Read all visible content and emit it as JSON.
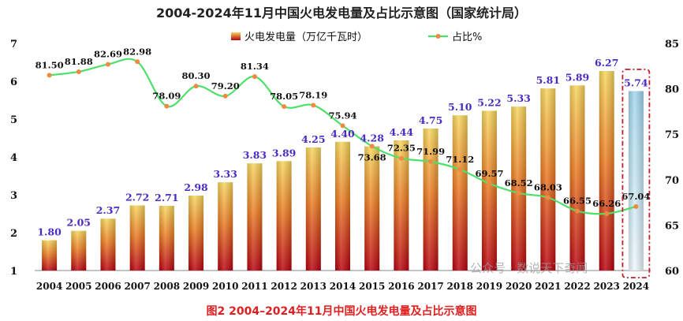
{
  "chart_data": {
    "type": "bar+line",
    "title": "2004-2024年11月中国火电发电量及占比示意图（国家统计局）",
    "caption": "图2 2004–2024年11月中国火电发电量及占比示意图",
    "watermark": "公众号 · 数说天下奇闻",
    "categories": [
      "2004",
      "2005",
      "2006",
      "2007",
      "2008",
      "2009",
      "2010",
      "2011",
      "2012",
      "2013",
      "2014",
      "2015",
      "2016",
      "2017",
      "2018",
      "2019",
      "2020",
      "2021",
      "2022",
      "2023",
      "2024"
    ],
    "series": [
      {
        "name": "火电发电量（万亿千瓦时）",
        "type": "bar",
        "axis": "left",
        "values": [
          1.8,
          2.05,
          2.37,
          2.72,
          2.71,
          2.98,
          3.33,
          3.83,
          3.89,
          4.25,
          4.4,
          4.28,
          4.44,
          4.75,
          5.1,
          5.22,
          5.33,
          5.81,
          5.89,
          6.27,
          5.74
        ],
        "labels": [
          "1.80",
          "2.05",
          "2.37",
          "2.72",
          "2.71",
          "2.98",
          "3.33",
          "3.83",
          "3.89",
          "4.25",
          "4.40",
          "4.28",
          "4.44",
          "4.75",
          "5.10",
          "5.22",
          "5.33",
          "5.81",
          "5.89",
          "6.27",
          "5.74"
        ]
      },
      {
        "name": "占比%",
        "type": "line",
        "axis": "right",
        "values": [
          81.5,
          81.88,
          82.69,
          82.98,
          78.09,
          80.3,
          79.2,
          81.34,
          78.05,
          78.19,
          75.94,
          73.68,
          72.35,
          71.99,
          71.12,
          69.57,
          68.52,
          68.03,
          66.55,
          66.26,
          67.04
        ],
        "labels": [
          "81.50",
          "81.88",
          "82.69",
          "82.98",
          "78.09",
          "80.30",
          "79.20",
          "81.34",
          "78.05",
          "78.19",
          "75.94",
          "73.68",
          "72.35",
          "71.99",
          "71.12",
          "69.57",
          "68.52",
          "68.03",
          "66.55",
          "66.26",
          "67.04"
        ]
      }
    ],
    "left_axis": {
      "min": 1,
      "max": 7,
      "ticks": [
        "1",
        "2",
        "3",
        "4",
        "5",
        "6",
        "7"
      ]
    },
    "right_axis": {
      "min": 60,
      "max": 85,
      "ticks": [
        "60",
        "65",
        "70",
        "75",
        "80",
        "85"
      ]
    },
    "highlight_category": "2024",
    "colors": {
      "bar_dark": "#b8000e",
      "bar_mid": "#e8601a",
      "bar_light": "#f6d35a",
      "bar_2024_top": "#a9dcef",
      "bar_2024_bottom": "#eaf6fb",
      "line": "#4de06a",
      "marker": "#f08a40",
      "highlight_box": "#c0202a"
    }
  }
}
